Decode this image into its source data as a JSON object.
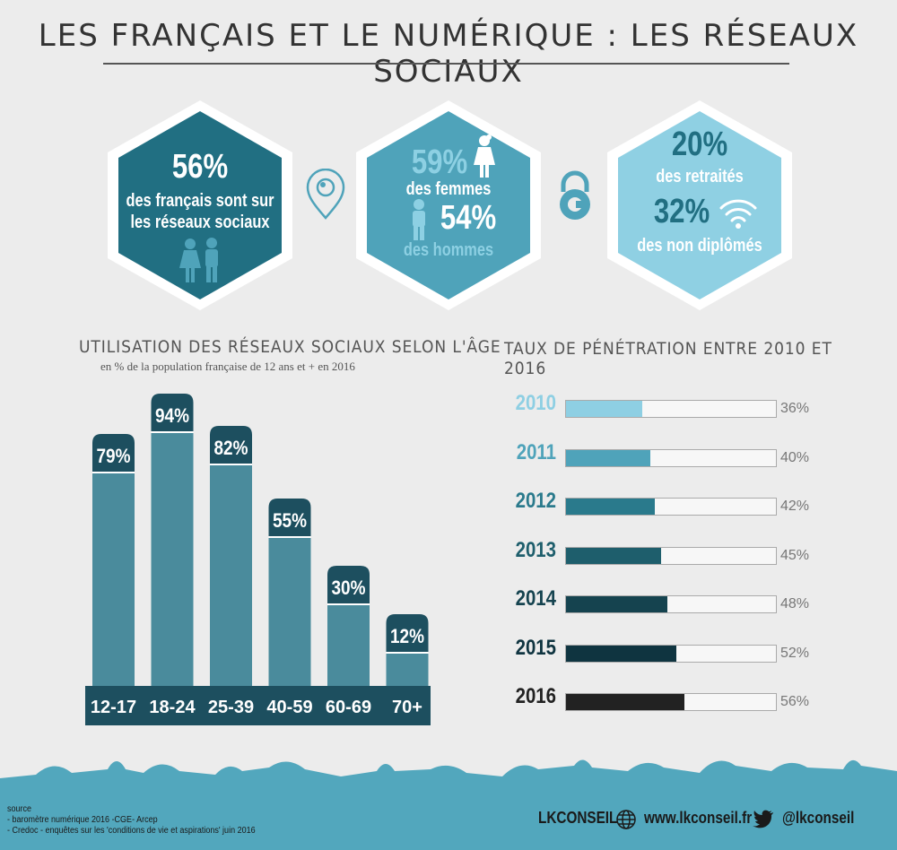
{
  "title": "LES FRANÇAIS ET LE NUMÉRIQUE : LES RÉSEAUX SOCIAUX",
  "hex1": {
    "pct": "56%",
    "line1": "des français sont sur",
    "line2": "les réseaux sociaux",
    "color": "#216f82"
  },
  "hex2": {
    "pct_women": "59%",
    "label_women": "des femmes",
    "pct_men": "54%",
    "label_men": "des hommes",
    "color": "#4fa3ba",
    "accent": "#8dd0e3"
  },
  "hex3": {
    "pct_retired": "20%",
    "label_retired": "des retraités",
    "pct_nodiploma": "32%",
    "label_nodiploma": "des  non diplômés",
    "color": "#8fd0e3",
    "text_color": "#216f82"
  },
  "age_section": {
    "title": "UTILISATION DES RÉSEAUX SOCIAUX SELON L'ÂGE",
    "subtitle": "en % de la population française de 12 ans et +   en 2016"
  },
  "penetration_section": {
    "title": "TAUX DE PÉNÉTRATION ENTRE 2010 ET 2016"
  },
  "chart_data": [
    {
      "type": "bar",
      "categories": [
        "12-17",
        "18-24",
        "25-39",
        "40-59",
        "60-69",
        "70+"
      ],
      "values": [
        79,
        94,
        82,
        55,
        30,
        12
      ],
      "labels": [
        "79%",
        "94%",
        "82%",
        "55%",
        "30%",
        "12%"
      ],
      "ylim": [
        0,
        100
      ],
      "colors": {
        "bar": "#4a8b9c",
        "label_bg": "#1d4f5f",
        "axis_bg": "#1d4f5f"
      }
    },
    {
      "type": "bar",
      "orientation": "horizontal",
      "categories": [
        "2010",
        "2011",
        "2012",
        "2013",
        "2014",
        "2015",
        "2016"
      ],
      "values": [
        36,
        40,
        42,
        45,
        48,
        52,
        56
      ],
      "labels": [
        "36%",
        "40%",
        "42%",
        "45%",
        "48%",
        "52%",
        "56%"
      ],
      "xlim": [
        0,
        100
      ],
      "colors": [
        "#8ecfe3",
        "#4fa3ba",
        "#2a7a8c",
        "#1e5e6c",
        "#15434f",
        "#0f3440",
        "#222222"
      ]
    }
  ],
  "footer": {
    "source_title": "source",
    "source_line1": "- baromètre numérique 2016 -CGE- Arcep",
    "source_line2": "- Credoc - enquêtes sur les 'conditions de vie et aspirations' juin 2016",
    "brand": "LKCONSEIL",
    "website": "www.lkconseil.fr",
    "twitter": "@lkconseil",
    "color": "#52a7bd"
  }
}
